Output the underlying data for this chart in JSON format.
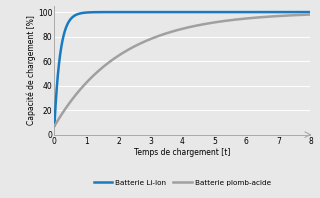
{
  "title": "",
  "xlabel": "Temps de chargement [t]",
  "ylabel": "Capacité de chargement [%]",
  "xlim": [
    0,
    8
  ],
  "ylim": [
    0,
    105
  ],
  "xticks": [
    0,
    1,
    2,
    3,
    4,
    5,
    6,
    7,
    8
  ],
  "yticks": [
    0,
    20,
    40,
    60,
    80,
    100
  ],
  "liion_color": "#1a7abf",
  "lead_color": "#a0a0a0",
  "liion_label": "Batterie Li-Ion",
  "lead_label": "Batterie plomb-acide",
  "background_color": "#e8e8e8",
  "plot_bg_color": "#e8e8e8",
  "grid_color": "#ffffff",
  "spine_color": "#aaaaaa",
  "liion_k": 5.5,
  "liion_start": 7.0,
  "lead_k": 0.48,
  "lead_start": 7.0
}
